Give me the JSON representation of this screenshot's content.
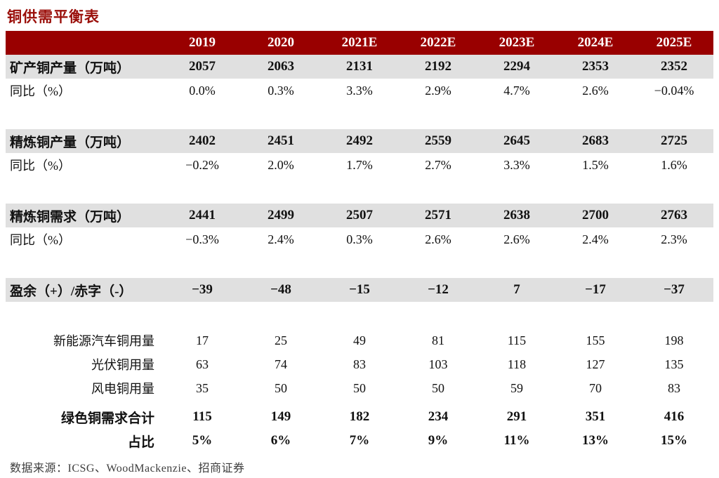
{
  "title": "铜供需平衡表",
  "colors": {
    "header_background": "#990000",
    "section_row_background": "#e0e0e0",
    "title_red": "#9a0f0a",
    "text": "#111111"
  },
  "table": {
    "header": [
      "",
      "2019",
      "2020",
      "2021E",
      "2022E",
      "2023E",
      "2024E",
      "2025E"
    ],
    "rows": [
      {
        "type": "band",
        "label": "矿产铜产量（万吨）",
        "values": [
          "2057",
          "2063",
          "2131",
          "2192",
          "2294",
          "2353",
          "2352"
        ]
      },
      {
        "type": "plain",
        "label": "同比（%）",
        "values": [
          "0.0%",
          "0.3%",
          "3.3%",
          "2.9%",
          "4.7%",
          "2.6%",
          "−0.04%"
        ]
      },
      {
        "type": "gap"
      },
      {
        "type": "band",
        "label": "精炼铜产量（万吨）",
        "values": [
          "2402",
          "2451",
          "2492",
          "2559",
          "2645",
          "2683",
          "2725"
        ]
      },
      {
        "type": "plain",
        "label": "同比（%）",
        "values": [
          "−0.2%",
          "2.0%",
          "1.7%",
          "2.7%",
          "3.3%",
          "1.5%",
          "1.6%"
        ]
      },
      {
        "type": "gap"
      },
      {
        "type": "band",
        "label": "精炼铜需求（万吨）",
        "values": [
          "2441",
          "2499",
          "2507",
          "2571",
          "2638",
          "2700",
          "2763"
        ]
      },
      {
        "type": "plain",
        "label": "同比（%）",
        "values": [
          "−0.3%",
          "2.4%",
          "0.3%",
          "2.6%",
          "2.6%",
          "2.4%",
          "2.3%"
        ]
      },
      {
        "type": "gap"
      },
      {
        "type": "band",
        "label": "盈余（+）/赤字（-）",
        "values": [
          "−39",
          "−48",
          "−15",
          "−12",
          "7",
          "−17",
          "−37"
        ]
      },
      {
        "type": "gap"
      },
      {
        "type": "detail",
        "label": "新能源汽车铜用量",
        "values": [
          "17",
          "25",
          "49",
          "81",
          "115",
          "155",
          "198"
        ]
      },
      {
        "type": "detail",
        "label": "光伏铜用量",
        "values": [
          "63",
          "74",
          "83",
          "103",
          "118",
          "127",
          "135"
        ]
      },
      {
        "type": "detail",
        "label": "风电铜用量",
        "values": [
          "35",
          "50",
          "50",
          "50",
          "59",
          "70",
          "83"
        ]
      },
      {
        "type": "gap-small"
      },
      {
        "type": "total",
        "label": "绿色铜需求合计",
        "values": [
          "115",
          "149",
          "182",
          "234",
          "291",
          "351",
          "416"
        ]
      },
      {
        "type": "total",
        "label": "占比",
        "values": [
          "5%",
          "6%",
          "7%",
          "9%",
          "11%",
          "13%",
          "15%"
        ]
      }
    ]
  },
  "footer": {
    "source": "数据来源：ICSG、WoodMackenzie、招商证券"
  }
}
